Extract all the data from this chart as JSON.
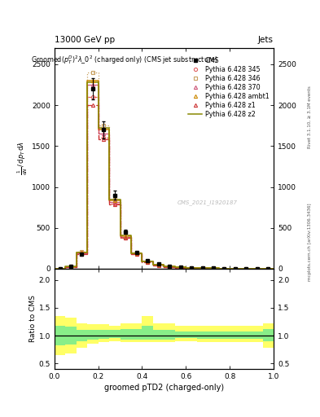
{
  "title_top": "13000 GeV pp",
  "title_right": "Jets",
  "xlabel": "groomed pTD2 (charged-only)",
  "ylabel_ratio": "Ratio to CMS",
  "right_label": "mcplots.cern.ch [arXiv:1306.3436]",
  "right_label2": "Rivet 3.1.10, ≥ 3.1M events",
  "watermark": "CMS_2021_I1920187",
  "x_bins": [
    0.0,
    0.05,
    0.1,
    0.15,
    0.2,
    0.25,
    0.3,
    0.35,
    0.4,
    0.45,
    0.5,
    0.55,
    0.6,
    0.65,
    0.7,
    0.75,
    0.8,
    0.85,
    0.9,
    0.95,
    1.0
  ],
  "cms_y": [
    0.0,
    30.0,
    180.0,
    2200.0,
    1700.0,
    900.0,
    450.0,
    200.0,
    100.0,
    60.0,
    30.0,
    20.0,
    12.0,
    8.0,
    5.0,
    3.0,
    2.0,
    1.5,
    1.0,
    0.5
  ],
  "py345_y": [
    0.0,
    25.0,
    200.0,
    2100.0,
    1600.0,
    800.0,
    380.0,
    180.0,
    85.0,
    45.0,
    22.0,
    14.0,
    9.0,
    6.0,
    4.0,
    2.5,
    1.5,
    1.0,
    0.7,
    0.3
  ],
  "py346_y": [
    0.0,
    28.0,
    210.0,
    2400.0,
    1750.0,
    850.0,
    410.0,
    195.0,
    92.0,
    50.0,
    25.0,
    16.0,
    10.0,
    7.0,
    4.5,
    2.8,
    1.8,
    1.2,
    0.8,
    0.4
  ],
  "py370_y": [
    0.0,
    20.0,
    190.0,
    2250.0,
    1650.0,
    820.0,
    390.0,
    185.0,
    88.0,
    48.0,
    24.0,
    15.0,
    9.5,
    6.5,
    4.2,
    2.6,
    1.7,
    1.1,
    0.75,
    0.35
  ],
  "pyambt1_y": [
    0.0,
    22.0,
    195.0,
    2300.0,
    1700.0,
    840.0,
    400.0,
    190.0,
    90.0,
    49.0,
    24.5,
    15.5,
    9.8,
    6.6,
    4.3,
    2.7,
    1.75,
    1.15,
    0.78,
    0.38
  ],
  "pyz1_y": [
    0.0,
    18.0,
    175.0,
    2000.0,
    1580.0,
    790.0,
    375.0,
    175.0,
    82.0,
    44.0,
    21.0,
    13.0,
    8.5,
    5.8,
    3.8,
    2.3,
    1.5,
    0.95,
    0.65,
    0.3
  ],
  "pyz2_y": [
    0.0,
    26.0,
    200.0,
    2280.0,
    1720.0,
    845.0,
    405.0,
    192.0,
    91.0,
    49.0,
    24.5,
    15.5,
    9.7,
    6.5,
    4.3,
    2.7,
    1.72,
    1.12,
    0.76,
    0.36
  ],
  "ratio_yellow_lo": [
    0.65,
    0.68,
    0.78,
    0.85,
    0.88,
    0.9,
    0.88,
    0.88,
    0.88,
    0.88,
    0.88,
    0.9,
    0.9,
    0.88,
    0.88,
    0.88,
    0.88,
    0.88,
    0.88,
    0.78
  ],
  "ratio_yellow_hi": [
    1.35,
    1.32,
    1.22,
    1.2,
    1.2,
    1.18,
    1.22,
    1.22,
    1.35,
    1.22,
    1.22,
    1.18,
    1.18,
    1.18,
    1.18,
    1.18,
    1.18,
    1.18,
    1.18,
    1.22
  ],
  "ratio_green_lo": [
    0.82,
    0.84,
    0.9,
    0.93,
    0.94,
    0.95,
    0.93,
    0.93,
    0.93,
    0.93,
    0.93,
    0.95,
    0.95,
    0.94,
    0.94,
    0.94,
    0.94,
    0.94,
    0.94,
    0.9
  ],
  "ratio_green_hi": [
    1.18,
    1.16,
    1.1,
    1.1,
    1.1,
    1.1,
    1.12,
    1.12,
    1.18,
    1.1,
    1.1,
    1.08,
    1.08,
    1.08,
    1.08,
    1.08,
    1.08,
    1.08,
    1.08,
    1.12
  ],
  "color_345": "#e06060",
  "color_346": "#c8a060",
  "color_370": "#cc5577",
  "color_ambt1": "#cc8800",
  "color_z1": "#cc3333",
  "color_z2": "#888800",
  "ylim_main": [
    0,
    2700
  ],
  "ylim_ratio": [
    0.4,
    2.2
  ],
  "yticks_main": [
    0,
    500,
    1000,
    1500,
    2000,
    2500
  ],
  "yticks_ratio": [
    0.5,
    1.0,
    1.5,
    2.0
  ]
}
